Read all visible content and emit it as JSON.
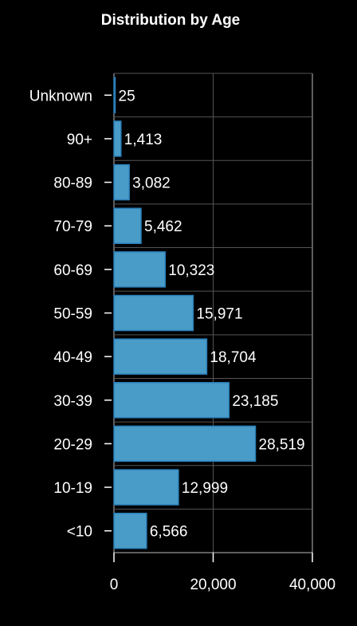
{
  "chart_data": {
    "type": "bar",
    "orientation": "horizontal",
    "title": "Distribution by Age",
    "xlabel": "",
    "ylabel": "",
    "categories": [
      "Unknown",
      "90+",
      "80-89",
      "70-79",
      "60-69",
      "50-59",
      "40-49",
      "30-39",
      "20-29",
      "10-19",
      "<10"
    ],
    "values": [
      25,
      1413,
      3082,
      5462,
      10323,
      15971,
      18704,
      23185,
      28519,
      12999,
      6566
    ],
    "value_labels": [
      "25",
      "1,413",
      "3,082",
      "5,462",
      "10,323",
      "15,971",
      "18,704",
      "23,185",
      "28,519",
      "12,999",
      "6,566"
    ],
    "xlim": [
      0,
      40000
    ],
    "x_ticks": [
      0,
      20000,
      40000
    ],
    "x_tick_labels": [
      "0",
      "20,000",
      "40,000"
    ],
    "grid": true,
    "legend": "none",
    "colors": {
      "background": "#000000",
      "bar_fill": "#4a9cc8",
      "bar_stroke": "#2a7fb8",
      "text": "#ffffff",
      "grid": "#555555",
      "axis": "#bbbbbb"
    }
  }
}
